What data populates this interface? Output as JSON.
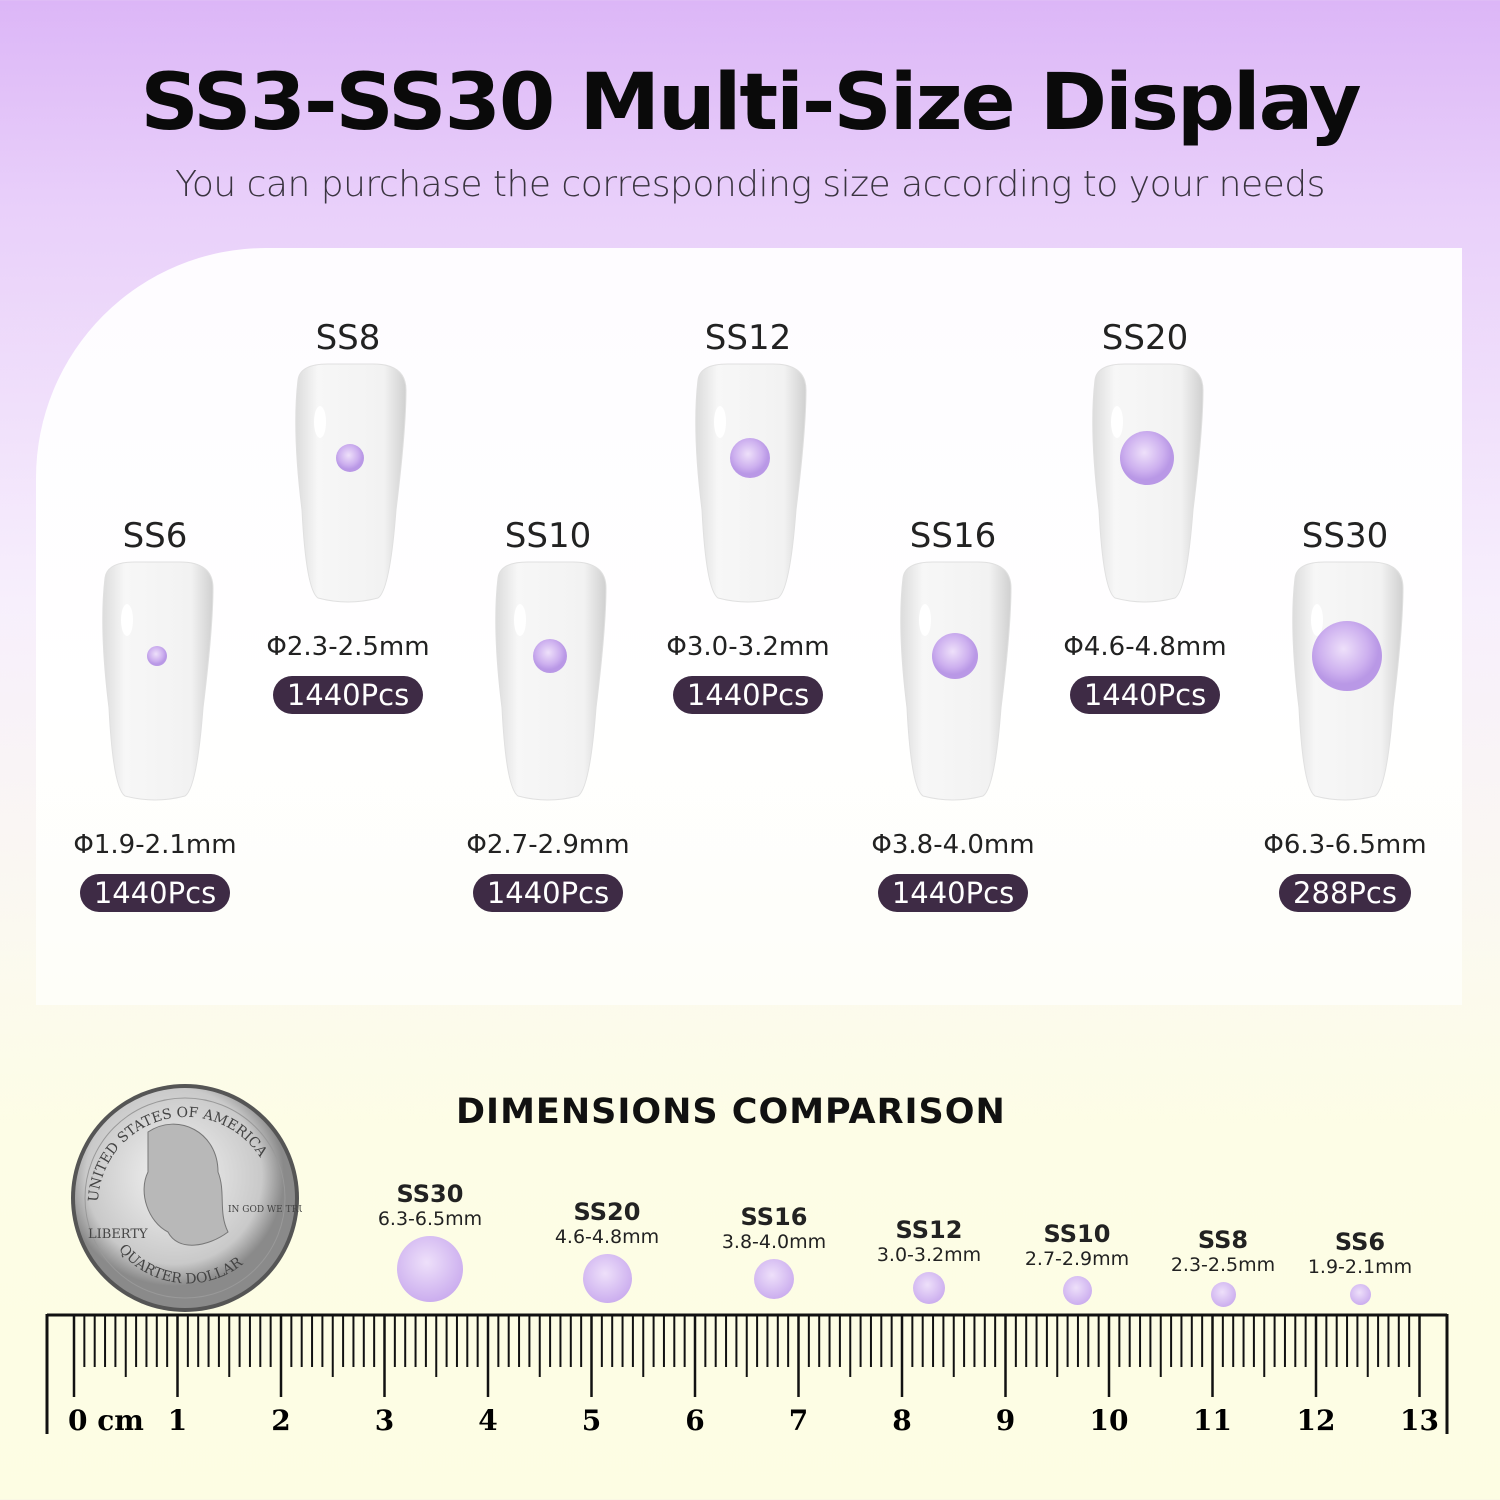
{
  "header": {
    "title": "SS3-SS30 Multi-Size Display",
    "subtitle": "You can purchase the corresponding size according to your needs"
  },
  "display_items": [
    {
      "size": "SS8",
      "diameter": "Φ2.3-2.5mm",
      "count": "1440Pcs",
      "row": "top"
    },
    {
      "size": "SS12",
      "diameter": "Φ3.0-3.2mm",
      "count": "1440Pcs",
      "row": "top"
    },
    {
      "size": "SS20",
      "diameter": "Φ4.6-4.8mm",
      "count": "1440Pcs",
      "row": "top"
    },
    {
      "size": "SS6",
      "diameter": "Φ1.9-2.1mm",
      "count": "1440Pcs",
      "row": "bottom"
    },
    {
      "size": "SS10",
      "diameter": "Φ2.7-2.9mm",
      "count": "1440Pcs",
      "row": "bottom"
    },
    {
      "size": "SS16",
      "diameter": "Φ3.8-4.0mm",
      "count": "1440Pcs",
      "row": "bottom"
    },
    {
      "size": "SS30",
      "diameter": "Φ6.3-6.5mm",
      "count": "288Pcs",
      "row": "bottom"
    }
  ],
  "comparison": {
    "title": "DIMENSIONS COMPARISON",
    "items": [
      {
        "size": "SS30",
        "diameter": "6.3-6.5mm"
      },
      {
        "size": "SS20",
        "diameter": "4.6-4.8mm"
      },
      {
        "size": "SS16",
        "diameter": "3.8-4.0mm"
      },
      {
        "size": "SS12",
        "diameter": "3.0-3.2mm"
      },
      {
        "size": "SS10",
        "diameter": "2.7-2.9mm"
      },
      {
        "size": "SS8",
        "diameter": "2.3-2.5mm"
      },
      {
        "size": "SS6",
        "diameter": "1.9-2.1mm"
      }
    ],
    "coin_text": [
      "UNITED STATES OF AMERICA",
      "LIBERTY",
      "IN GOD WE TRUST",
      "QUARTER DOLLAR"
    ],
    "ruler": {
      "unit": "cm",
      "labels": [
        "0 cm",
        "1",
        "2",
        "3",
        "4",
        "5",
        "6",
        "7",
        "8",
        "9",
        "10",
        "11",
        "12",
        "13"
      ]
    }
  },
  "colors": {
    "gem": "#cdb0ef",
    "badge": "#3e2b45",
    "top_background": "#dcb6f7",
    "bottom_background": "#fdfde3"
  }
}
